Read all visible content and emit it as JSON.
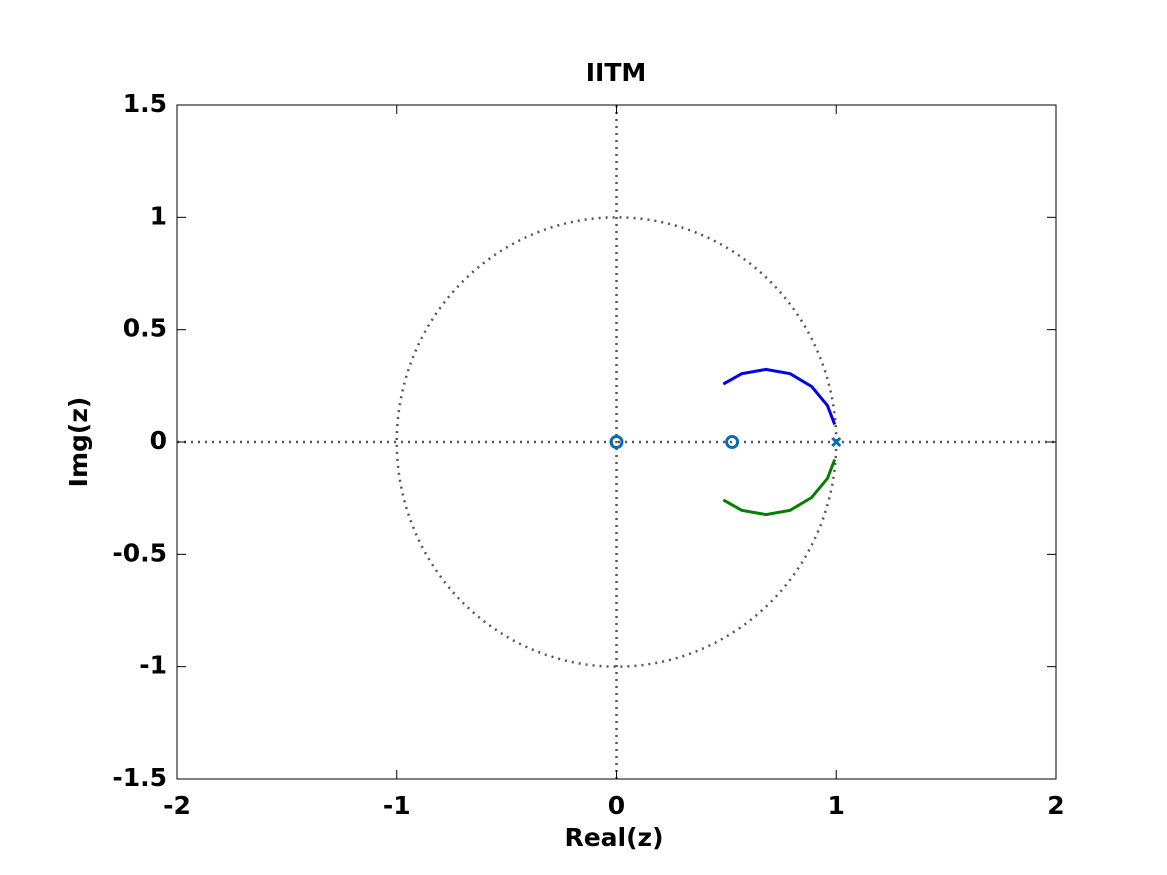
{
  "chart_data": {
    "type": "scatter",
    "title": "IITM",
    "xlabel": "Real(z)",
    "ylabel": "Img(z)",
    "xlim": [
      -2,
      2
    ],
    "ylim": [
      -1.5,
      1.5
    ],
    "xticks": [
      -2,
      -1,
      0,
      1,
      2
    ],
    "yticks": [
      -1.5,
      -1,
      -0.5,
      0,
      0.5,
      1,
      1.5
    ],
    "unit_circle": true,
    "zero_lines": true,
    "box": true,
    "series": [
      {
        "color": "#0000ee",
        "marker": "line",
        "x": [
          0.486,
          0.57,
          0.68,
          0.79,
          0.888,
          0.96,
          0.993
        ],
        "values": [
          0.258,
          0.304,
          0.323,
          0.304,
          0.247,
          0.162,
          0.078
        ]
      },
      {
        "color": "#007f00",
        "marker": "line",
        "x": [
          0.486,
          0.57,
          0.68,
          0.79,
          0.888,
          0.96,
          0.993
        ],
        "values": [
          -0.258,
          -0.304,
          -0.323,
          -0.304,
          -0.247,
          -0.162,
          -0.078
        ]
      },
      {
        "color": "#0b6cad",
        "marker": "o",
        "x": [
          0,
          0.526
        ],
        "values": [
          0,
          0
        ]
      },
      {
        "color": "#0b6cad",
        "marker": "x",
        "x": [
          1
        ],
        "values": [
          0
        ]
      }
    ]
  }
}
